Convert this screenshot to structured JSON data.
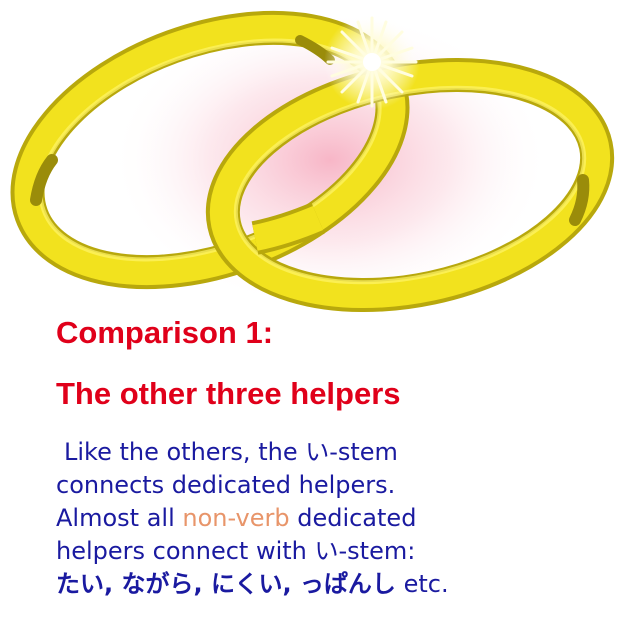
{
  "heading": {
    "line1": "Comparison 1:",
    "line2": "The other three helpers"
  },
  "body": {
    "line1": "Like the others, the い-stem",
    "line2": "connects dedicated helpers.",
    "line3_before": "Almost all ",
    "line3_highlight": "non-verb",
    "line3_after": " dedicated",
    "line4": "helpers connect with い-stem:",
    "line5_jp": "たい, ながら, にくい, っぱんし",
    "line5_rest": " etc."
  },
  "colors": {
    "heading": "#e0001a",
    "body": "#1a1aa0",
    "highlight": "#e8956a",
    "ring_gold": "#f2e21e",
    "ring_shadow": "#b8a80c",
    "glow": "#f7b8c8"
  },
  "icons": {
    "illustration": "two-wedding-rings-image",
    "sparkle": "sparkle-icon"
  }
}
